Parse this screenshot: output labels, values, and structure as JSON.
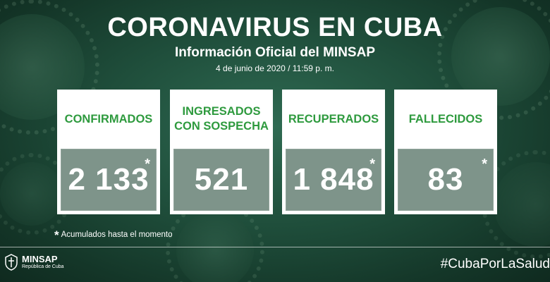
{
  "header": {
    "title": "CORONAVIRUS EN CUBA",
    "subtitle": "Información Oficial del MINSAP",
    "date": "4 de junio de 2020 / 11:59 p. m."
  },
  "cards": [
    {
      "label": "CONFIRMADOS",
      "value": "2 133",
      "marker": "*"
    },
    {
      "label_line1": "INGRESADOS",
      "label_line2": "CON SOSPECHA",
      "value": "521"
    },
    {
      "label": "RECUPERADOS",
      "value": "1 848",
      "marker": "*"
    },
    {
      "label": "FALLECIDOS",
      "value": "83",
      "marker": "*"
    }
  ],
  "footnote": {
    "marker": "*",
    "text": "Acumulados hasta el momento"
  },
  "footer": {
    "logo_name": "MINSAP",
    "logo_sub": "República de Cuba",
    "hashtag": "#CubaPorLaSalud"
  },
  "colors": {
    "background": "#1f4e3b",
    "label_green": "#2e9a3e",
    "text": "#ffffff"
  },
  "icons": [
    "virus-illustration",
    "minsap-emblem-icon"
  ]
}
